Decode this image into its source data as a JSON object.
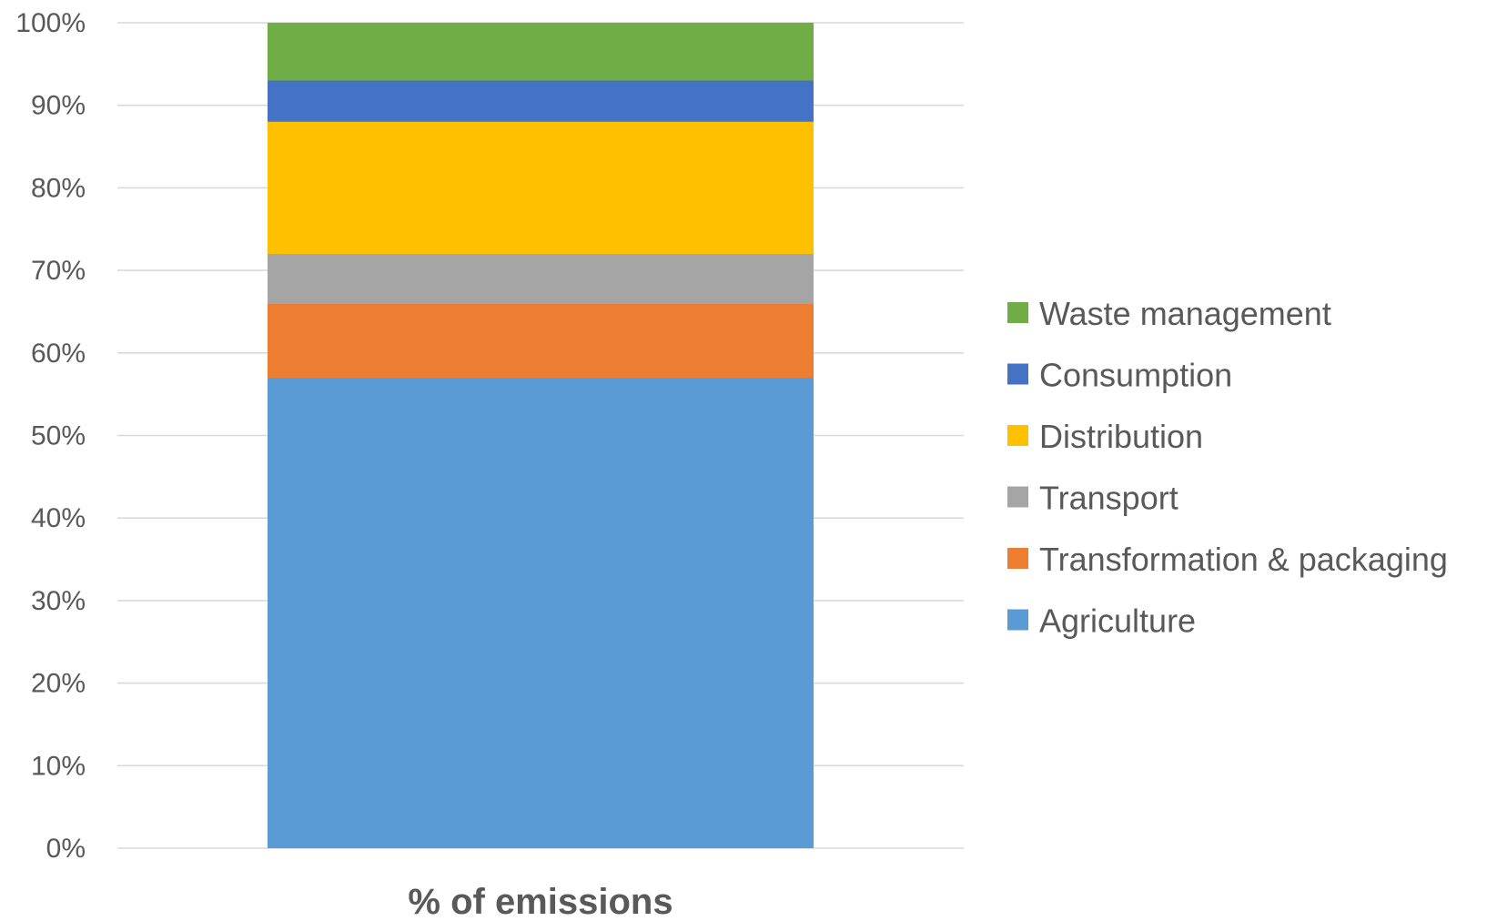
{
  "chart_data": {
    "type": "bar",
    "stacked": true,
    "categories": [
      "% of emissions"
    ],
    "series": [
      {
        "name": "Agriculture",
        "values": [
          57
        ],
        "color": "#5B9BD5"
      },
      {
        "name": "Transformation & packaging",
        "values": [
          9
        ],
        "color": "#ED7D31"
      },
      {
        "name": "Transport",
        "values": [
          6
        ],
        "color": "#A5A5A5"
      },
      {
        "name": "Distribution",
        "values": [
          16
        ],
        "color": "#FFC000"
      },
      {
        "name": "Consumption",
        "values": [
          5
        ],
        "color": "#4472C4"
      },
      {
        "name": "Waste management",
        "values": [
          7
        ],
        "color": "#70AD47"
      }
    ],
    "y_ticks": [
      "0%",
      "10%",
      "20%",
      "30%",
      "40%",
      "50%",
      "60%",
      "70%",
      "80%",
      "90%",
      "100%"
    ],
    "ylim": [
      0,
      100
    ],
    "grid": true,
    "legend_position": "right"
  }
}
